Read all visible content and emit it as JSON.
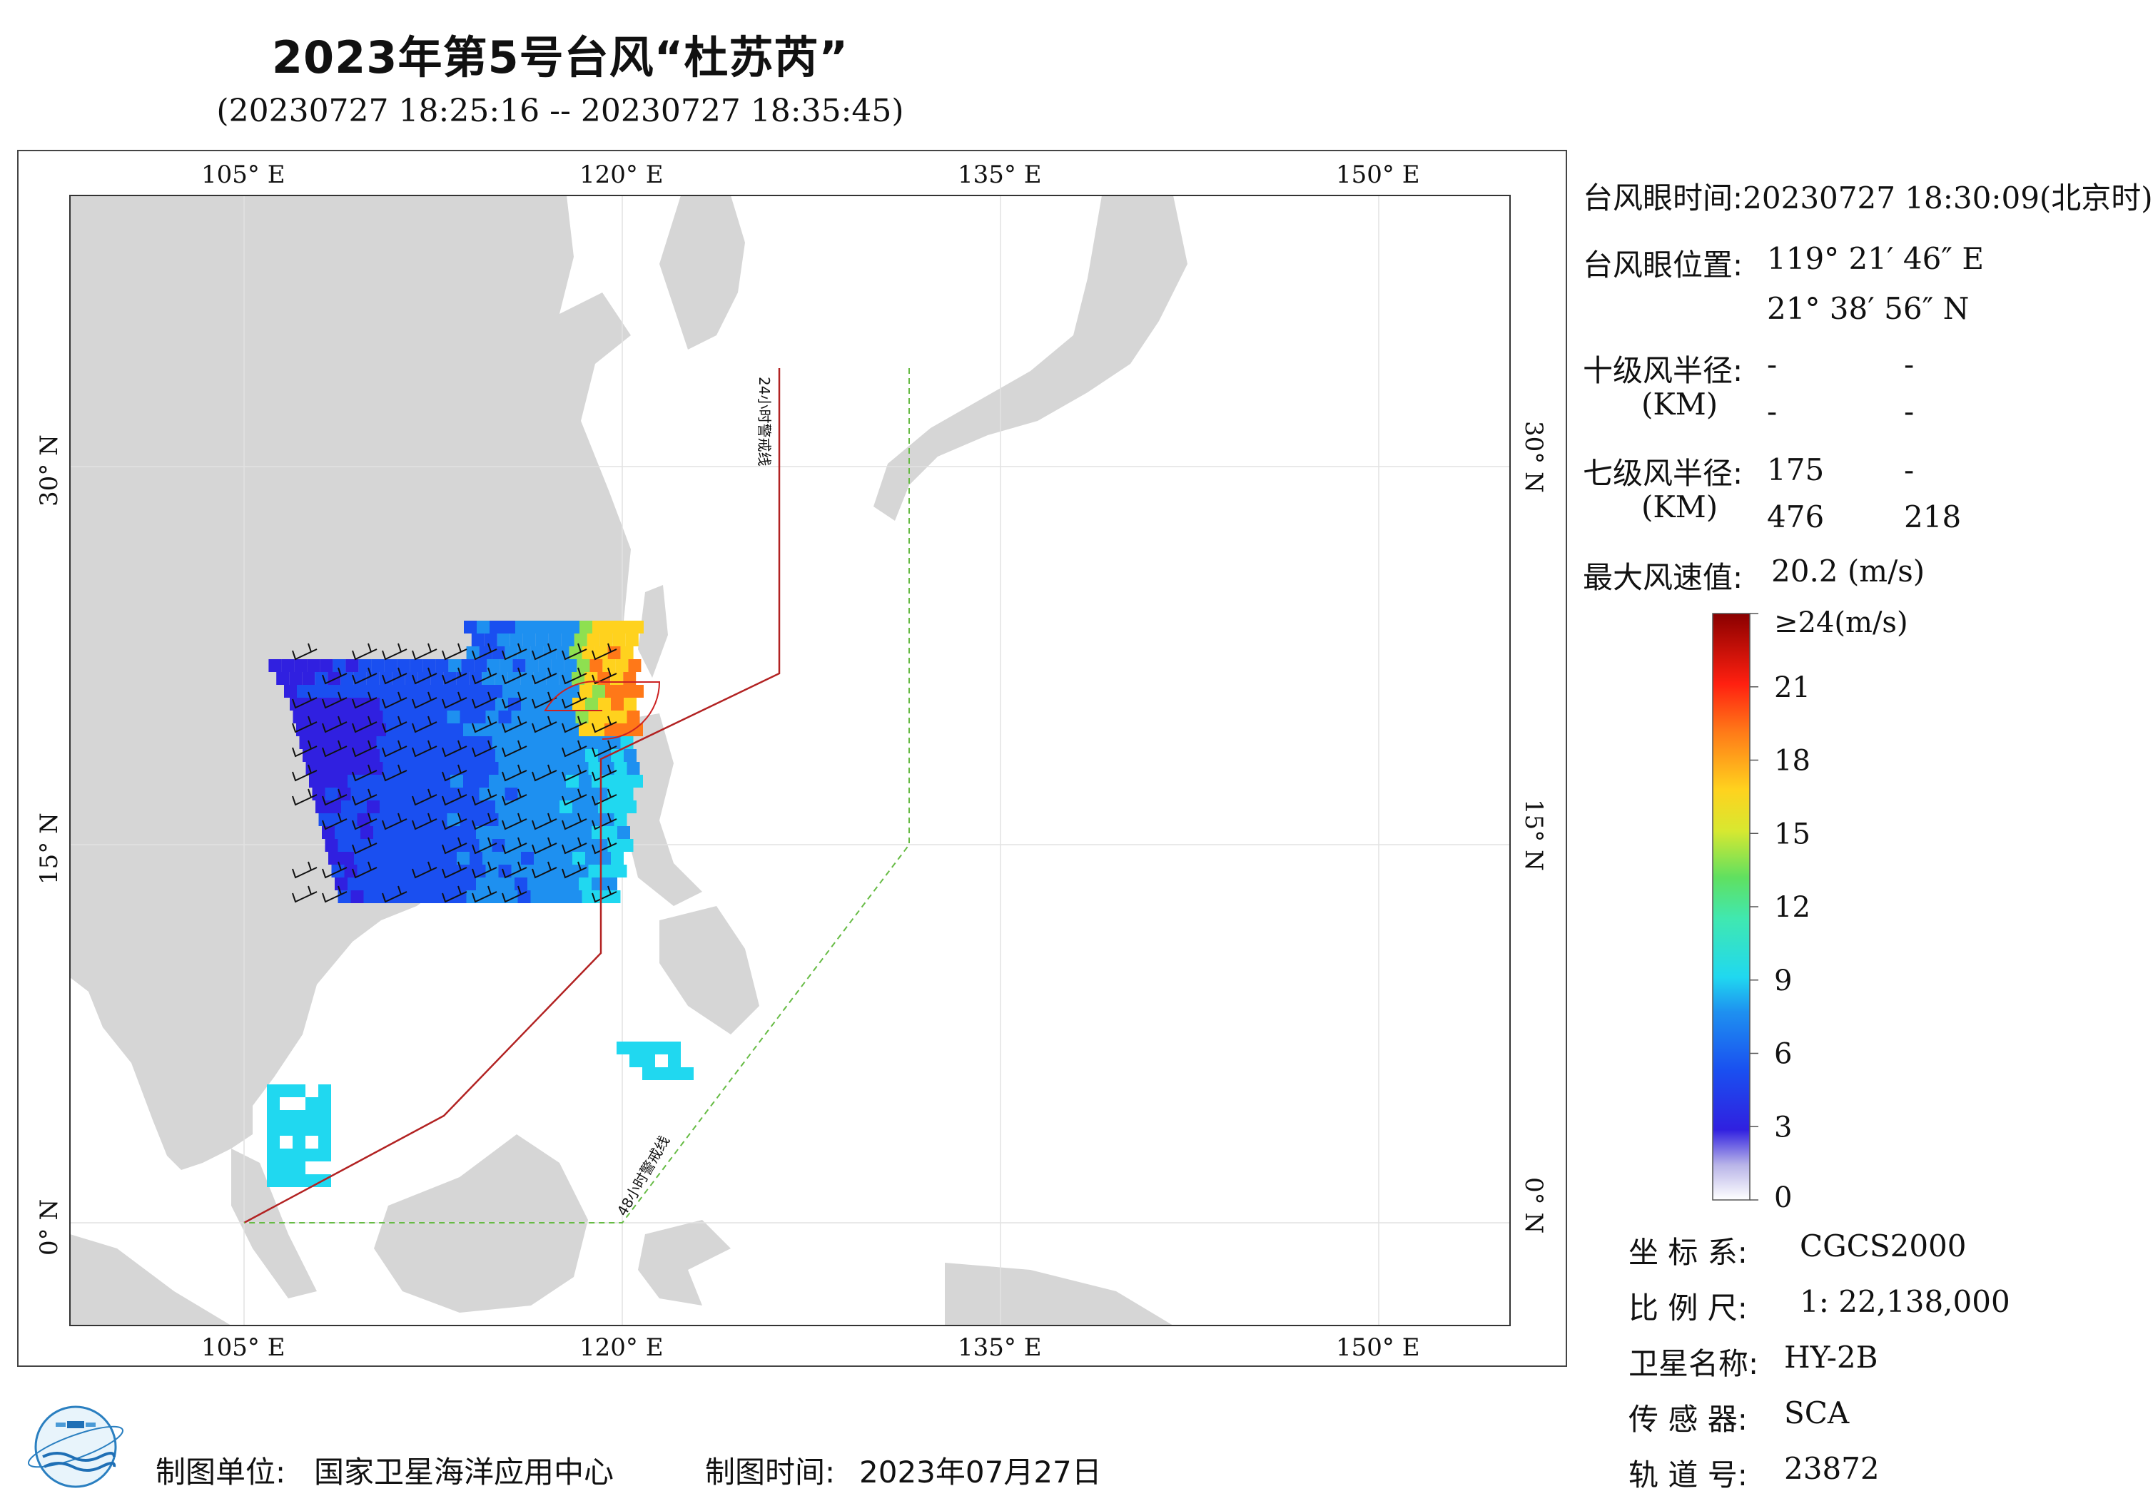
{
  "title": "2023年第5号台风“杜苏芮”",
  "subtitle": "(20230727 18:25:16 -- 20230727 18:35:45)",
  "map": {
    "lon_ticks": [
      "105° E",
      "120° E",
      "135° E",
      "150° E"
    ],
    "lat_ticks": [
      "30° N",
      "15° N",
      "0° N"
    ],
    "line_24h_label": "24小时警戒线",
    "line_48h_label": "48小时警戒线",
    "land_color": "#d6d6d6",
    "sea_color": "#ffffff",
    "line_24h_color": "#b22222",
    "line_48h_color": "#66bb44"
  },
  "info": {
    "eye_time_label": "台风眼时间:",
    "eye_time_value": "20230727 18:30:09(北京时)",
    "eye_pos_label": "台风眼位置:",
    "eye_lon": "119° 21′ 46″ E",
    "eye_lat": "21° 38′ 56″ N",
    "r10_label": "十级风半径:",
    "r10_unit": "(KM)",
    "r10_values": [
      "-",
      "-",
      "-",
      "-"
    ],
    "r7_label": "七级风半径:",
    "r7_unit": "(KM)",
    "r7_values": [
      "175",
      "-",
      "476",
      "218"
    ],
    "max_wind_label": "最大风速值:",
    "max_wind_value": "20.2  (m/s)"
  },
  "colorbar": {
    "ticks": [
      "≥24(m/s)",
      "21",
      "18",
      "15",
      "12",
      "9",
      "6",
      "3",
      "0"
    ],
    "tick_values": [
      24,
      21,
      18,
      15,
      12,
      9,
      6,
      3,
      0
    ]
  },
  "meta": {
    "crs_label": "坐 标 系:",
    "crs_value": "CGCS2000",
    "scale_label": "比 例 尺:",
    "scale_value": "1: 22,138,000",
    "satellite_label": "卫星名称:",
    "satellite_value": "HY-2B",
    "sensor_label": "传 感 器:",
    "sensor_value": "SCA",
    "orbit_label": "轨 道 号:",
    "orbit_value": "23872"
  },
  "footer": {
    "maker_label": "制图单位:",
    "maker_value": "国家卫星海洋应用中心",
    "date_label": "制图时间:",
    "date_value": "2023年07月27日"
  }
}
